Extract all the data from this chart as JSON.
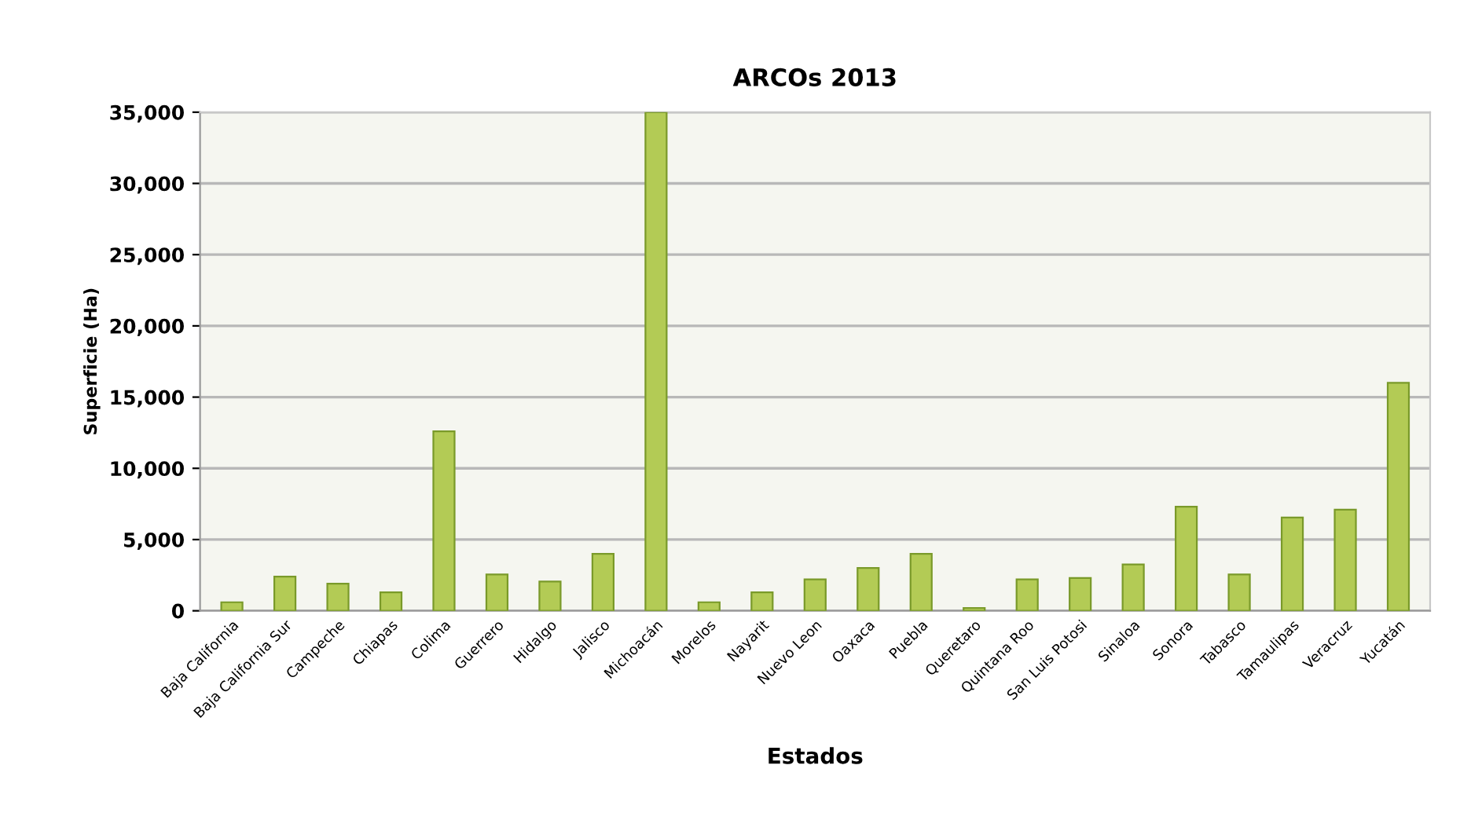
{
  "chart_data": {
    "type": "bar",
    "title": "ARCOs 2013",
    "xlabel": "Estados",
    "ylabel": "Superficie (Ha)",
    "categories": [
      "Baja California",
      "Baja California Sur",
      "Campeche",
      "Chiapas",
      "Colima",
      "Guerrero",
      "Hidalgo",
      "Jalisco",
      "Michoacán",
      "Morelos",
      "Nayarit",
      "Nuevo Leon",
      "Oaxaca",
      "Puebla",
      "Queretaro",
      "Quintana Roo",
      "San Luis Potosi",
      "Sinaloa",
      "Sonora",
      "Tabasco",
      "Tamaulipas",
      "Veracruz",
      "Yucatán"
    ],
    "values": [
      600,
      2400,
      1900,
      1300,
      12600,
      2550,
      2050,
      4000,
      35000,
      600,
      1300,
      2200,
      3000,
      4000,
      200,
      2200,
      2300,
      3250,
      7300,
      2550,
      6550,
      7100,
      16000
    ],
    "color": "#b3cb55",
    "ylim": [
      0,
      35000
    ],
    "yticks": [
      0,
      {
        "value": 5000,
        "label": "5,000"
      },
      {
        "value": 10000,
        "label": "10,000"
      },
      {
        "value": 15000,
        "label": "15,000"
      },
      {
        "value": 20000,
        "label": "20,000"
      },
      {
        "value": 25000,
        "label": "25,000"
      },
      {
        "value": 30000,
        "label": "30,000"
      },
      {
        "value": 35000,
        "label": "35,000"
      }
    ],
    "grid": "y"
  }
}
